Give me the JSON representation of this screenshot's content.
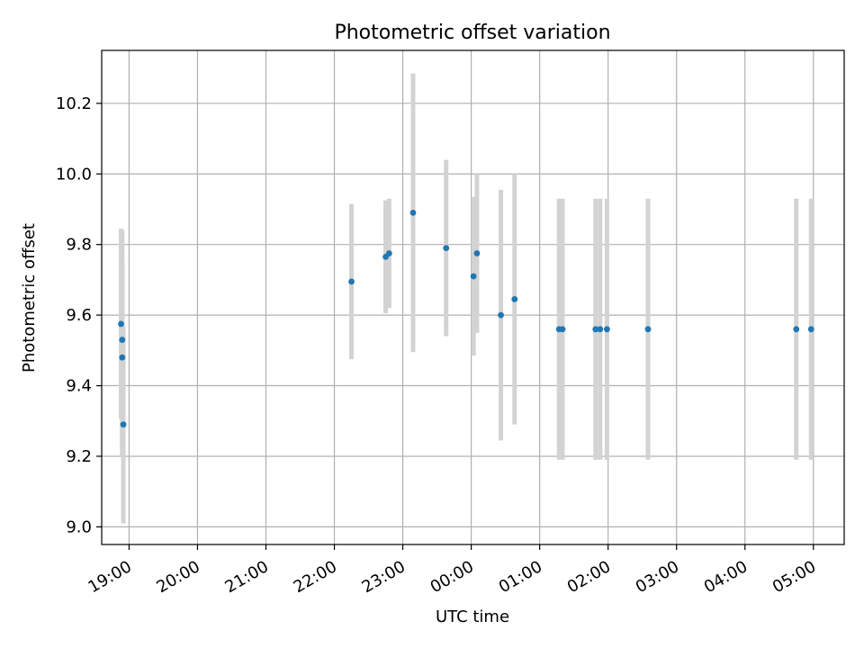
{
  "chart_data": {
    "type": "scatter",
    "title": "Photometric offset variation",
    "xlabel": "UTC time",
    "ylabel": "Photometric offset",
    "grid": true,
    "xlim": [
      "18:36",
      "05:27"
    ],
    "ylim": [
      8.95,
      10.35
    ],
    "x_ticks": [
      "19:00",
      "20:00",
      "21:00",
      "22:00",
      "23:00",
      "00:00",
      "01:00",
      "02:00",
      "03:00",
      "04:00",
      "05:00"
    ],
    "y_ticks": [
      "9.0",
      "9.2",
      "9.4",
      "9.6",
      "9.8",
      "10.0",
      "10.2"
    ],
    "colors": {
      "point": "#1f77b4",
      "errorbar": "#d3d3d3",
      "grid": "#b0b0b0"
    },
    "series": [
      {
        "points": [
          {
            "x": "18:53",
            "y": 9.575,
            "err": 0.27
          },
          {
            "x": "18:54",
            "y": 9.53,
            "err": 0.31
          },
          {
            "x": "18:54",
            "y": 9.48,
            "err": 0.28
          },
          {
            "x": "18:55",
            "y": 9.29,
            "err": 0.28
          },
          {
            "x": "22:15",
            "y": 9.695,
            "err": 0.22
          },
          {
            "x": "22:45",
            "y": 9.765,
            "err": 0.16
          },
          {
            "x": "22:48",
            "y": 9.775,
            "err": 0.155
          },
          {
            "x": "23:09",
            "y": 9.89,
            "err": 0.395
          },
          {
            "x": "23:38",
            "y": 9.79,
            "err": 0.25
          },
          {
            "x": "00:02",
            "y": 9.71,
            "err": 0.225
          },
          {
            "x": "00:05",
            "y": 9.775,
            "err": 0.225
          },
          {
            "x": "00:26",
            "y": 9.6,
            "err": 0.355
          },
          {
            "x": "00:38",
            "y": 9.645,
            "err": 0.355
          },
          {
            "x": "01:17",
            "y": 9.56,
            "err": 0.37
          },
          {
            "x": "01:20",
            "y": 9.56,
            "err": 0.37
          },
          {
            "x": "01:49",
            "y": 9.56,
            "err": 0.37
          },
          {
            "x": "01:53",
            "y": 9.56,
            "err": 0.37
          },
          {
            "x": "01:59",
            "y": 9.56,
            "err": 0.37
          },
          {
            "x": "02:35",
            "y": 9.56,
            "err": 0.37
          },
          {
            "x": "04:45",
            "y": 9.56,
            "err": 0.37
          },
          {
            "x": "04:58",
            "y": 9.56,
            "err": 0.37
          }
        ]
      }
    ]
  }
}
